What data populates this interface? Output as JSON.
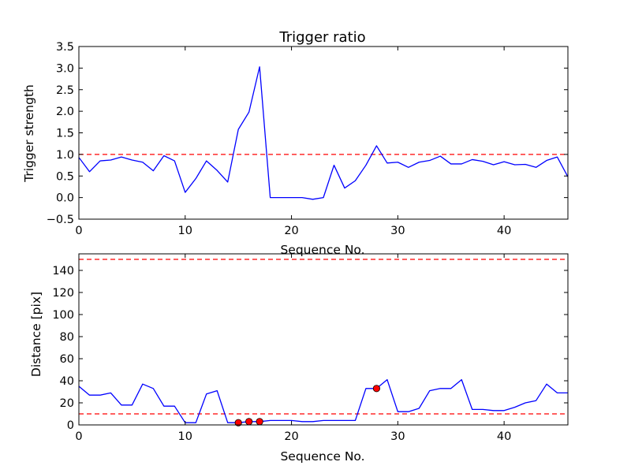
{
  "colors": {
    "series": "#0000ff",
    "reference": "#ff0000",
    "marker_fill": "#ff0000",
    "marker_edge": "#000000"
  },
  "chart_data": [
    {
      "type": "line",
      "title": "Trigger ratio",
      "xlabel": "Sequence No.",
      "ylabel": "Trigger strength",
      "xlim": [
        0,
        46
      ],
      "ylim": [
        -0.5,
        3.5
      ],
      "xticks": [
        0,
        10,
        20,
        30,
        40
      ],
      "xtick_labels": [
        "0",
        "10",
        "20",
        "30",
        "40"
      ],
      "yticks": [
        -0.5,
        0.0,
        0.5,
        1.0,
        1.5,
        2.0,
        2.5,
        3.0,
        3.5
      ],
      "ytick_labels": [
        "−0.5",
        "0.0",
        "0.5",
        "1.0",
        "1.5",
        "2.0",
        "2.5",
        "3.0",
        "3.5"
      ],
      "grid": false,
      "series": [
        {
          "x": [
            0,
            1,
            2,
            3,
            4,
            5,
            6,
            7,
            8,
            9,
            10,
            11,
            12,
            13,
            14,
            15,
            16,
            17,
            18,
            19,
            20,
            21,
            22,
            23,
            24,
            25,
            26,
            27,
            28,
            29,
            30,
            31,
            32,
            33,
            34,
            35,
            36,
            37,
            38,
            39,
            40,
            41,
            42,
            43,
            44,
            45,
            46
          ],
          "values": [
            0.93,
            0.6,
            0.85,
            0.87,
            0.94,
            0.87,
            0.82,
            0.62,
            0.97,
            0.85,
            0.12,
            0.44,
            0.85,
            0.63,
            0.36,
            1.58,
            1.98,
            3.03,
            0.0,
            0.0,
            0.0,
            0.0,
            -0.04,
            0.0,
            0.75,
            0.22,
            0.39,
            0.75,
            1.2,
            0.8,
            0.82,
            0.7,
            0.82,
            0.86,
            0.96,
            0.78,
            0.78,
            0.88,
            0.84,
            0.76,
            0.83,
            0.76,
            0.77,
            0.7,
            0.86,
            0.94,
            0.48
          ]
        }
      ],
      "reference_lines": [
        1.0
      ]
    },
    {
      "type": "line",
      "title": "",
      "xlabel": "Sequence No.",
      "ylabel": "Distance [pix]",
      "xlim": [
        0,
        46
      ],
      "ylim": [
        0,
        155
      ],
      "xticks": [
        0,
        10,
        20,
        30,
        40
      ],
      "xtick_labels": [
        "0",
        "10",
        "20",
        "30",
        "40"
      ],
      "yticks": [
        0,
        20,
        40,
        60,
        80,
        100,
        120,
        140
      ],
      "ytick_labels": [
        "0",
        "20",
        "40",
        "60",
        "80",
        "100",
        "120",
        "140"
      ],
      "grid": false,
      "series": [
        {
          "x": [
            0,
            1,
            2,
            3,
            4,
            5,
            6,
            7,
            8,
            9,
            10,
            11,
            12,
            13,
            14,
            15,
            16,
            17,
            18,
            19,
            20,
            21,
            22,
            23,
            24,
            25,
            26,
            27,
            28,
            29,
            30,
            31,
            32,
            33,
            34,
            35,
            36,
            37,
            38,
            39,
            40,
            41,
            42,
            43,
            44,
            45,
            46
          ],
          "values": [
            35,
            27,
            27,
            29,
            18,
            18,
            37,
            33,
            17,
            17,
            2,
            2,
            28,
            31,
            2,
            2,
            3,
            3,
            4,
            4,
            4,
            3,
            3,
            4,
            4,
            4,
            4,
            33,
            33,
            41,
            12,
            12,
            15,
            31,
            33,
            33,
            41,
            14,
            14,
            13,
            13,
            16,
            20,
            22,
            37,
            29,
            29
          ]
        }
      ],
      "reference_lines": [
        10,
        150
      ],
      "markers": {
        "x": [
          15,
          16,
          17,
          28
        ],
        "values": [
          2,
          3,
          3,
          33
        ]
      }
    }
  ]
}
